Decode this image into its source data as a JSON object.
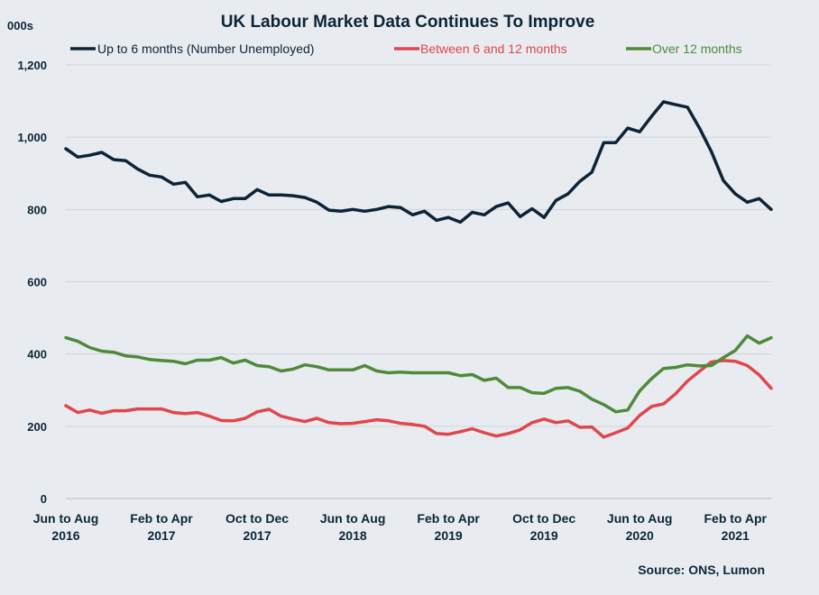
{
  "colors": {
    "s0": "#0d2436",
    "s1": "#e0474c",
    "s2": "#4f8a3c",
    "text": "#0d2436"
  },
  "source": "Source: ONS, Lumon",
  "chart_data": {
    "type": "line",
    "title": "UK Labour Market Data Continues To Improve",
    "y_unit": "000s",
    "ylim": [
      0,
      1200
    ],
    "yticks": [
      "0",
      "200",
      "400",
      "600",
      "800",
      "1,000",
      "1,200"
    ],
    "ytick_values": [
      0,
      200,
      400,
      600,
      800,
      1000,
      1200
    ],
    "grid": true,
    "legend_position": "top",
    "x_tick_labels": [
      {
        "line1": "Jun to Aug",
        "line2": "2016",
        "index": 0
      },
      {
        "line1": "Feb to Apr",
        "line2": "2017",
        "index": 8
      },
      {
        "line1": "Oct to Dec",
        "line2": "2017",
        "index": 16
      },
      {
        "line1": "Jun to Aug",
        "line2": "2018",
        "index": 24
      },
      {
        "line1": "Feb to Apr",
        "line2": "2019",
        "index": 32
      },
      {
        "line1": "Oct to Dec",
        "line2": "2019",
        "index": 40
      },
      {
        "line1": "Jun to Aug",
        "line2": "2020",
        "index": 48
      },
      {
        "line1": "Feb to Apr",
        "line2": "2021",
        "index": 56
      }
    ],
    "series": [
      {
        "name": "Up to 6 months (Number Unemployed)",
        "values": [
          968,
          945,
          950,
          958,
          938,
          935,
          912,
          895,
          890,
          870,
          875,
          835,
          840,
          822,
          830,
          830,
          855,
          840,
          840,
          838,
          833,
          820,
          798,
          795,
          800,
          795,
          800,
          808,
          805,
          785,
          795,
          770,
          778,
          765,
          792,
          785,
          808,
          818,
          780,
          802,
          778,
          825,
          843,
          878,
          903,
          985,
          985,
          1025,
          1015,
          1058,
          1098,
          1090,
          1083,
          1025,
          960,
          880,
          843,
          820,
          830,
          800
        ]
      },
      {
        "name": "Between 6 and 12 months",
        "values": [
          257,
          238,
          245,
          236,
          243,
          243,
          248,
          248,
          248,
          238,
          235,
          238,
          228,
          216,
          215,
          222,
          240,
          247,
          228,
          220,
          213,
          222,
          210,
          207,
          208,
          213,
          218,
          215,
          208,
          205,
          200,
          180,
          178,
          185,
          193,
          182,
          173,
          180,
          190,
          210,
          220,
          210,
          215,
          197,
          198,
          170,
          182,
          195,
          230,
          255,
          262,
          290,
          325,
          352,
          378,
          382,
          380,
          368,
          342,
          305
        ]
      },
      {
        "name": "Over 12 months",
        "values": [
          445,
          435,
          418,
          408,
          405,
          395,
          392,
          385,
          382,
          380,
          373,
          383,
          383,
          390,
          375,
          383,
          368,
          365,
          353,
          358,
          370,
          365,
          356,
          356,
          356,
          368,
          353,
          348,
          350,
          348,
          348,
          348,
          348,
          340,
          343,
          327,
          333,
          307,
          307,
          293,
          291,
          305,
          307,
          297,
          275,
          260,
          240,
          245,
          298,
          332,
          360,
          363,
          370,
          367,
          368,
          390,
          410,
          450,
          430,
          445
        ]
      }
    ]
  }
}
